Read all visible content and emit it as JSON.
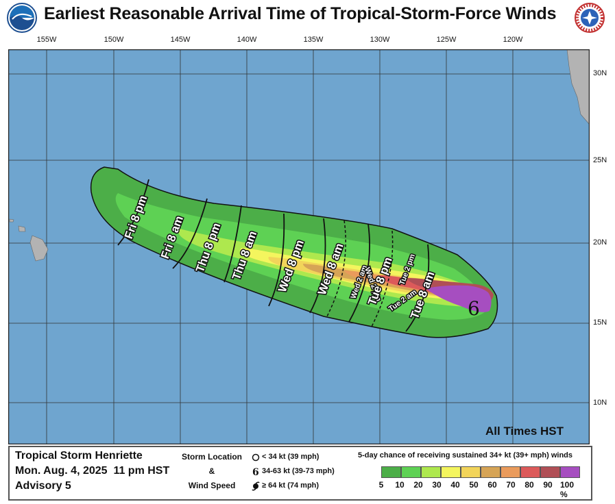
{
  "title": "Earliest Reasonable Arrival Time of Tropical-Storm-Force Winds",
  "logos": {
    "left": "NOAA",
    "right": "NATIONAL WEATHER SERVICE"
  },
  "map": {
    "lon_labels": [
      "155W",
      "150W",
      "145W",
      "140W",
      "135W",
      "130W",
      "125W",
      "120W"
    ],
    "lat_labels": [
      "30N",
      "25N",
      "20N",
      "15N",
      "10N"
    ],
    "time_labels": [
      "Fri 8 pm",
      "Fri 8 am",
      "Thu 8 pm",
      "Thu 8 am",
      "Wed 8 pm",
      "Wed 8 am",
      "Wed 2 am",
      "Wed 2 pm",
      "Tue 8 pm",
      "Tue 2 pm",
      "Tue 2 am",
      "Tue 8 am"
    ],
    "note": "All Times HST",
    "colors": {
      "ocean": "#6fa5cf",
      "land": "#b3b3b3",
      "contour": "#111111"
    }
  },
  "info": {
    "storm_name": "Tropical Storm Henriette",
    "datetime": "Mon. Aug. 4, 2025  11 pm HST",
    "advisory": "Advisory 5"
  },
  "key": {
    "heading_line1": "Storm Location",
    "heading_line2": "&",
    "heading_line3": "Wind Speed",
    "items": [
      {
        "icon": "hollow-circle-icon",
        "label": "< 34 kt (39 mph)"
      },
      {
        "icon": "tropical-storm-icon",
        "label": "34-63 kt (39-73 mph)"
      },
      {
        "icon": "hurricane-icon",
        "label": "≥ 64 kt (74 mph)"
      }
    ]
  },
  "legend": {
    "title": "5-day chance of receiving sustained 34+ kt (39+ mph) winds",
    "colors": [
      "#4cae48",
      "#5ed154",
      "#aee84e",
      "#f4f55e",
      "#f2d45a",
      "#d6a456",
      "#ea9b5c",
      "#dc5a5a",
      "#b04f56",
      "#a64ec0"
    ],
    "ticks": [
      "5",
      "10",
      "20",
      "30",
      "40",
      "50",
      "60",
      "70",
      "80",
      "90",
      "100 %"
    ]
  }
}
